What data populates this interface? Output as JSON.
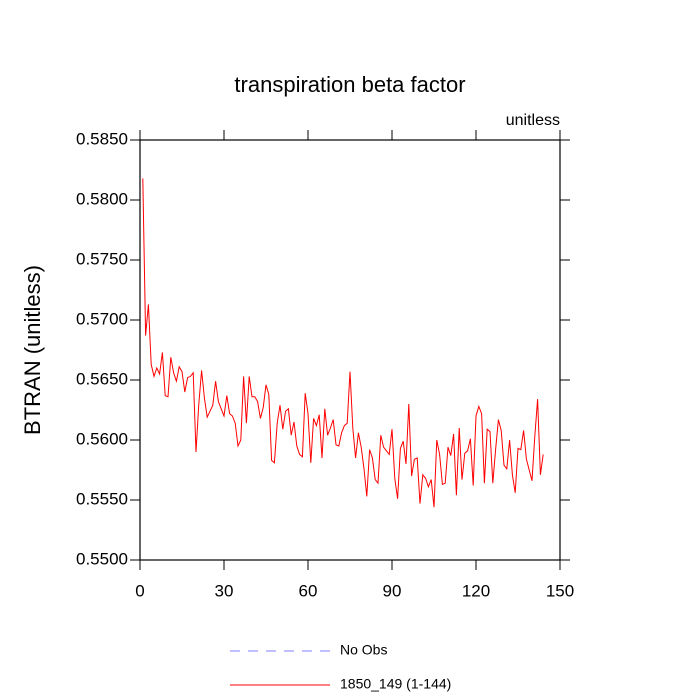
{
  "chart_data": {
    "type": "line",
    "title": "transpiration beta factor",
    "subtitle": "unitless",
    "y_label": "BTRAN  (unitless)",
    "x": [
      1,
      2,
      3,
      4,
      5,
      6,
      7,
      8,
      9,
      10,
      11,
      12,
      13,
      14,
      15,
      16,
      17,
      18,
      19,
      20,
      21,
      22,
      23,
      24,
      25,
      26,
      27,
      28,
      29,
      30,
      31,
      32,
      33,
      34,
      35,
      36,
      37,
      38,
      39,
      40,
      41,
      42,
      43,
      44,
      45,
      46,
      47,
      48,
      49,
      50,
      51,
      52,
      53,
      54,
      55,
      56,
      57,
      58,
      59,
      60,
      61,
      62,
      63,
      64,
      65,
      66,
      67,
      68,
      69,
      70,
      71,
      72,
      73,
      74,
      75,
      76,
      77,
      78,
      79,
      80,
      81,
      82,
      83,
      84,
      85,
      86,
      87,
      88,
      89,
      90,
      91,
      92,
      93,
      94,
      95,
      96,
      97,
      98,
      99,
      100,
      101,
      102,
      103,
      104,
      105,
      106,
      107,
      108,
      109,
      110,
      111,
      112,
      113,
      114,
      115,
      116,
      117,
      118,
      119,
      120,
      121,
      122,
      123,
      124,
      125,
      126,
      127,
      128,
      129,
      130,
      131,
      132,
      133,
      134,
      135,
      136,
      137,
      138,
      139,
      140,
      141,
      142,
      143,
      144
    ],
    "series": [
      {
        "name": "No Obs",
        "color": "#8080ff",
        "dashed": true,
        "values": [
          null,
          null,
          null,
          null,
          null,
          null,
          null,
          null,
          null,
          null,
          null,
          null,
          null,
          null,
          null,
          null,
          null,
          null,
          null,
          null,
          null,
          null,
          null,
          null,
          null,
          null,
          null,
          null,
          null,
          null,
          null,
          null,
          null,
          null,
          null,
          null,
          null,
          null,
          null,
          null,
          null,
          null,
          null,
          null,
          null,
          null,
          null,
          null,
          null,
          null,
          null,
          null,
          null,
          null,
          null,
          null,
          null,
          null,
          null,
          null,
          null,
          null,
          null,
          null,
          null,
          null,
          null,
          null,
          null,
          null,
          null,
          null,
          null,
          null,
          null,
          null,
          null,
          null,
          null,
          null,
          null,
          null,
          null,
          null,
          null,
          null,
          null,
          null,
          null,
          null,
          null,
          null,
          null,
          null,
          null,
          null,
          null,
          null,
          null,
          null,
          null,
          null,
          null,
          null,
          null,
          null,
          null,
          null,
          null,
          null,
          null,
          null,
          null,
          null,
          null,
          null,
          null,
          null,
          null,
          null,
          null,
          null,
          null,
          null,
          null,
          null,
          null,
          null,
          null,
          null,
          null,
          null,
          null,
          null,
          null,
          null,
          null,
          null,
          null,
          null,
          null,
          null,
          null,
          null
        ]
      },
      {
        "name": "1850_149 (1-144)",
        "color": "#ff0000",
        "dashed": false,
        "values": [
          0.5818,
          0.5687,
          0.5713,
          0.5663,
          0.5653,
          0.566,
          0.5655,
          0.5673,
          0.5637,
          0.5636,
          0.5669,
          0.5656,
          0.5649,
          0.5661,
          0.5657,
          0.564,
          0.5652,
          0.5653,
          0.5656,
          0.559,
          0.563,
          0.5658,
          0.5635,
          0.5619,
          0.5624,
          0.5629,
          0.5649,
          0.5632,
          0.5626,
          0.562,
          0.5637,
          0.5622,
          0.562,
          0.5614,
          0.5595,
          0.56,
          0.5653,
          0.5614,
          0.5653,
          0.5636,
          0.5636,
          0.5632,
          0.5618,
          0.5627,
          0.5646,
          0.5638,
          0.5583,
          0.5581,
          0.5614,
          0.5629,
          0.5609,
          0.5624,
          0.5626,
          0.5604,
          0.5615,
          0.5595,
          0.5588,
          0.5586,
          0.5639,
          0.5622,
          0.5581,
          0.5618,
          0.5612,
          0.5621,
          0.5585,
          0.5626,
          0.5604,
          0.561,
          0.5617,
          0.5596,
          0.5595,
          0.5606,
          0.5612,
          0.5614,
          0.5657,
          0.561,
          0.5585,
          0.5606,
          0.5594,
          0.5576,
          0.5553,
          0.5592,
          0.5585,
          0.5567,
          0.5564,
          0.5604,
          0.5594,
          0.5591,
          0.5588,
          0.5609,
          0.5568,
          0.5551,
          0.5593,
          0.5599,
          0.558,
          0.563,
          0.557,
          0.5584,
          0.5585,
          0.5547,
          0.5571,
          0.5568,
          0.5561,
          0.5567,
          0.5544,
          0.56,
          0.5588,
          0.5563,
          0.5564,
          0.5594,
          0.5587,
          0.5605,
          0.5554,
          0.561,
          0.5567,
          0.5589,
          0.5591,
          0.5601,
          0.5562,
          0.562,
          0.5628,
          0.5622,
          0.5564,
          0.5609,
          0.5607,
          0.5564,
          0.5592,
          0.5617,
          0.5608,
          0.5579,
          0.5576,
          0.56,
          0.5571,
          0.5556,
          0.5593,
          0.5592,
          0.5608,
          0.5584,
          0.5575,
          0.5566,
          0.5603,
          0.5634,
          0.5571,
          0.5588
        ]
      }
    ],
    "xlim": [
      0,
      150
    ],
    "xticks": [
      0,
      30,
      60,
      90,
      120,
      150
    ],
    "ylim": [
      0.55,
      0.585
    ],
    "yticks": [
      {
        "value": 0.55,
        "label": "0.5500"
      },
      {
        "value": 0.555,
        "label": "0.5550"
      },
      {
        "value": 0.56,
        "label": "0.5600"
      },
      {
        "value": 0.565,
        "label": "0.5650"
      },
      {
        "value": 0.57,
        "label": "0.5700"
      },
      {
        "value": 0.575,
        "label": "0.5750"
      },
      {
        "value": 0.58,
        "label": "0.5800"
      },
      {
        "value": 0.585,
        "label": "0.5850"
      }
    ],
    "grid": false
  }
}
